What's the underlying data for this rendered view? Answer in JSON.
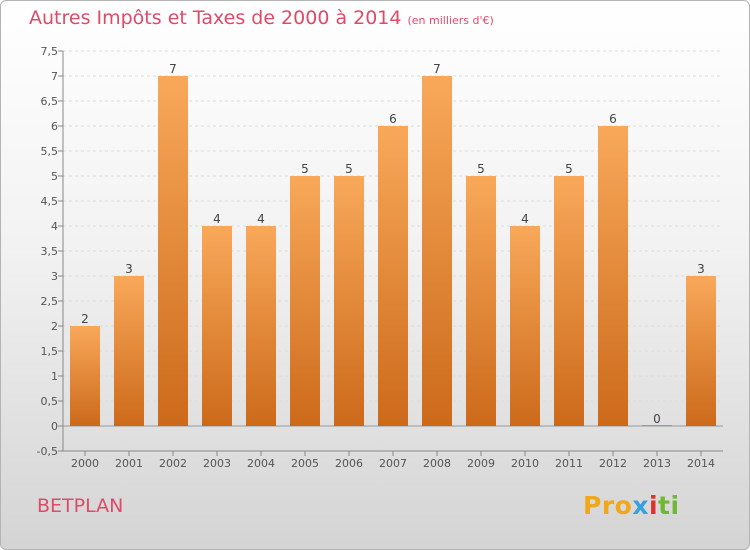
{
  "chart_data": {
    "type": "bar",
    "title": "Autres Impôts et Taxes de 2000 à 2014",
    "subtitle": "(en milliers d'€)",
    "categories": [
      "2000",
      "2001",
      "2002",
      "2003",
      "2004",
      "2005",
      "2006",
      "2007",
      "2008",
      "2009",
      "2010",
      "2011",
      "2012",
      "2013",
      "2014"
    ],
    "values": [
      2,
      3,
      7,
      4,
      4,
      5,
      5,
      6,
      7,
      5,
      4,
      5,
      6,
      0,
      3
    ],
    "data_labels": [
      "2",
      "3",
      "7",
      "4",
      "4",
      "5",
      "5",
      "6",
      "7",
      "5",
      "4",
      "5",
      "6",
      "0",
      "3"
    ],
    "y_ticks": [
      "-0,5",
      "0",
      "0,5",
      "1",
      "1,5",
      "2",
      "2,5",
      "3",
      "3,5",
      "4",
      "4,5",
      "5",
      "5,5",
      "6",
      "6,5",
      "7",
      "7,5"
    ],
    "y_tick_values": [
      -0.5,
      0,
      0.5,
      1,
      1.5,
      2,
      2.5,
      3,
      3.5,
      4,
      4.5,
      5,
      5.5,
      6,
      6.5,
      7,
      7.5
    ],
    "ylim": [
      -0.5,
      7.5
    ],
    "xlabel": "",
    "ylabel": "",
    "grid": "horizontal-dashed",
    "bar_color_top": "#f9a85a",
    "bar_color_bottom": "#cc6a1a",
    "grid_color": "#dcdcdc"
  },
  "footer": {
    "commune": "BETPLAN",
    "logo_parts": [
      "Pro",
      "x",
      "i",
      "ti"
    ]
  },
  "colors": {
    "title": "#df4a68",
    "axis_text": "#555555"
  }
}
